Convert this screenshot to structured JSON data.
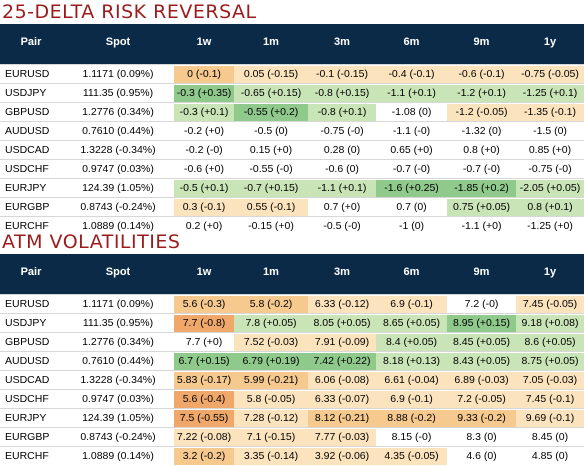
{
  "colors": {
    "header_bg": "#0b2a47",
    "title": "#9b1c1c",
    "green_strong": "#8fc98c",
    "green_light": "#c9e4b6",
    "orange_strong": "#f0a86a",
    "orange_mid": "#f6c98e",
    "orange_light": "#fbe3bd",
    "neutral": "#ffffff"
  },
  "rr": {
    "title": "25-DELTA RISK REVERSAL",
    "headers": [
      "Pair",
      "Spot",
      "1w",
      "1m",
      "3m",
      "6m",
      "9m",
      "1y"
    ],
    "rows": [
      {
        "pair": "EURUSD",
        "spot": "1.1171 (0.09%)",
        "vals": [
          "0 (-0.1)",
          "0.05 (-0.15)",
          "-0.1 (-0.15)",
          "-0.4 (-0.1)",
          "-0.6 (-0.1)",
          "-0.75 (-0.05)"
        ],
        "shade": [
          "om",
          "ol",
          "ol",
          "ol",
          "ol",
          "ol"
        ]
      },
      {
        "pair": "USDJPY",
        "spot": "111.35 (0.95%)",
        "vals": [
          "-0.3 (+0.35)",
          "-0.65 (+0.15)",
          "-0.8 (+0.15)",
          "-1.1 (+0.1)",
          "-1.2 (+0.1)",
          "-1.25 (+0.1)"
        ],
        "shade": [
          "gs",
          "gl",
          "gl",
          "gl",
          "gl",
          "gl"
        ]
      },
      {
        "pair": "GBPUSD",
        "spot": "1.2776 (0.34%)",
        "vals": [
          "-0.3 (+0.1)",
          "-0.55 (+0.2)",
          "-0.8 (+0.1)",
          "-1.08 (0)",
          "-1.2 (-0.05)",
          "-1.35 (-0.1)"
        ],
        "shade": [
          "gl",
          "gs",
          "gl",
          "n",
          "ol",
          "ol"
        ]
      },
      {
        "pair": "AUDUSD",
        "spot": "0.7610 (0.44%)",
        "vals": [
          "-0.2 (+0)",
          "-0.5 (0)",
          "-0.75 (-0)",
          "-1.1 (-0)",
          "-1.32 (0)",
          "-1.5 (0)"
        ],
        "shade": [
          "n",
          "n",
          "n",
          "n",
          "n",
          "n"
        ]
      },
      {
        "pair": "USDCAD",
        "spot": "1.3228 (-0.34%)",
        "vals": [
          "-0.2 (-0)",
          "0.15 (+0)",
          "0.28 (0)",
          "0.65 (+0)",
          "0.8 (+0)",
          "0.85 (+0)"
        ],
        "shade": [
          "n",
          "n",
          "n",
          "n",
          "n",
          "n"
        ]
      },
      {
        "pair": "USDCHF",
        "spot": "0.9747 (0.03%)",
        "vals": [
          "-0.6 (+0)",
          "-0.55 (-0)",
          "-0.6 (0)",
          "-0.7 (-0)",
          "-0.7 (-0)",
          "-0.75 (-0)"
        ],
        "shade": [
          "n",
          "n",
          "n",
          "n",
          "n",
          "n"
        ]
      },
      {
        "pair": "EURJPY",
        "spot": "124.39 (1.05%)",
        "vals": [
          "-0.5 (+0.1)",
          "-0.7 (+0.15)",
          "-1.1 (+0.1)",
          "-1.6 (+0.25)",
          "-1.85 (+0.2)",
          "-2.05 (+0.05)"
        ],
        "shade": [
          "gl",
          "gl",
          "gl",
          "gs",
          "gs",
          "gl"
        ]
      },
      {
        "pair": "EURGBP",
        "spot": "0.8743 (-0.24%)",
        "vals": [
          "0.3 (-0.1)",
          "0.55 (-0.1)",
          "0.7 (+0)",
          "0.7 (0)",
          "0.75 (+0.05)",
          "0.8 (+0.1)"
        ],
        "shade": [
          "ol",
          "ol",
          "n",
          "n",
          "gl",
          "gl"
        ]
      },
      {
        "pair": "EURCHF",
        "spot": "1.0889 (0.14%)",
        "vals": [
          "0.2 (+0)",
          "-0.15 (+0)",
          "-0.5 (-0)",
          "-1 (0)",
          "-1.1 (+0)",
          "-1.25 (+0)"
        ],
        "shade": [
          "n",
          "n",
          "n",
          "n",
          "n",
          "n"
        ]
      }
    ]
  },
  "atm": {
    "title": "ATM VOLATILITIES",
    "headers": [
      "Pair",
      "Spot",
      "1w",
      "1m",
      "3m",
      "6m",
      "9m",
      "1y"
    ],
    "rows": [
      {
        "pair": "EURUSD",
        "spot": "1.1171 (0.09%)",
        "vals": [
          "5.6 (-0.3)",
          "5.8 (-0.2)",
          "6.33 (-0.12)",
          "6.9 (-0.1)",
          "7.2 (-0)",
          "7.45 (-0.05)"
        ],
        "shade": [
          "om",
          "om",
          "ol",
          "ol",
          "n",
          "ol"
        ]
      },
      {
        "pair": "USDJPY",
        "spot": "111.35 (0.95%)",
        "vals": [
          "7.7 (-0.8)",
          "7.8 (+0.05)",
          "8.05 (+0.05)",
          "8.65 (+0.05)",
          "8.95 (+0.15)",
          "9.18 (+0.08)"
        ],
        "shade": [
          "os",
          "gl",
          "gl",
          "gl",
          "gs",
          "gl"
        ]
      },
      {
        "pair": "GBPUSD",
        "spot": "1.2776 (0.34%)",
        "vals": [
          "7.7 (+0)",
          "7.52 (-0.03)",
          "7.91 (-0.09)",
          "8.4 (+0.05)",
          "8.45 (+0.05)",
          "8.6 (+0.05)"
        ],
        "shade": [
          "n",
          "ol",
          "ol",
          "gl",
          "gl",
          "gl"
        ]
      },
      {
        "pair": "AUDUSD",
        "spot": "0.7610 (0.44%)",
        "vals": [
          "6.7 (+0.15)",
          "6.79 (+0.19)",
          "7.42 (+0.22)",
          "8.18 (+0.13)",
          "8.43 (+0.05)",
          "8.75 (+0.05)"
        ],
        "shade": [
          "gs",
          "gs",
          "gs",
          "gl",
          "gl",
          "gl"
        ]
      },
      {
        "pair": "USDCAD",
        "spot": "1.3228 (-0.34%)",
        "vals": [
          "5.83 (-0.17)",
          "5.99 (-0.21)",
          "6.06 (-0.08)",
          "6.61 (-0.04)",
          "6.89 (-0.03)",
          "7.05 (-0.03)"
        ],
        "shade": [
          "om",
          "om",
          "ol",
          "ol",
          "ol",
          "ol"
        ]
      },
      {
        "pair": "USDCHF",
        "spot": "0.9747 (0.03%)",
        "vals": [
          "5.6 (-0.4)",
          "5.8 (-0.05)",
          "6.33 (-0.07)",
          "6.9 (-0.1)",
          "7.2 (-0.05)",
          "7.45 (-0.1)"
        ],
        "shade": [
          "os",
          "ol",
          "ol",
          "ol",
          "ol",
          "ol"
        ]
      },
      {
        "pair": "EURJPY",
        "spot": "124.39 (1.05%)",
        "vals": [
          "7.5 (-0.55)",
          "7.28 (-0.12)",
          "8.12 (-0.21)",
          "8.88 (-0.2)",
          "9.33 (-0.2)",
          "9.69 (-0.1)"
        ],
        "shade": [
          "os",
          "ol",
          "om",
          "om",
          "om",
          "ol"
        ]
      },
      {
        "pair": "EURGBP",
        "spot": "0.8743 (-0.24%)",
        "vals": [
          "7.22 (-0.08)",
          "7.1 (-0.15)",
          "7.77 (-0.03)",
          "8.15 (-0)",
          "8.3 (0)",
          "8.45 (0)"
        ],
        "shade": [
          "ol",
          "ol",
          "ol",
          "n",
          "n",
          "n"
        ]
      },
      {
        "pair": "EURCHF",
        "spot": "1.0889 (0.14%)",
        "vals": [
          "3.2 (-0.2)",
          "3.35 (-0.14)",
          "3.92 (-0.06)",
          "4.35 (-0.05)",
          "4.6 (0)",
          "4.85 (0)"
        ],
        "shade": [
          "om",
          "ol",
          "ol",
          "ol",
          "n",
          "n"
        ]
      }
    ]
  }
}
